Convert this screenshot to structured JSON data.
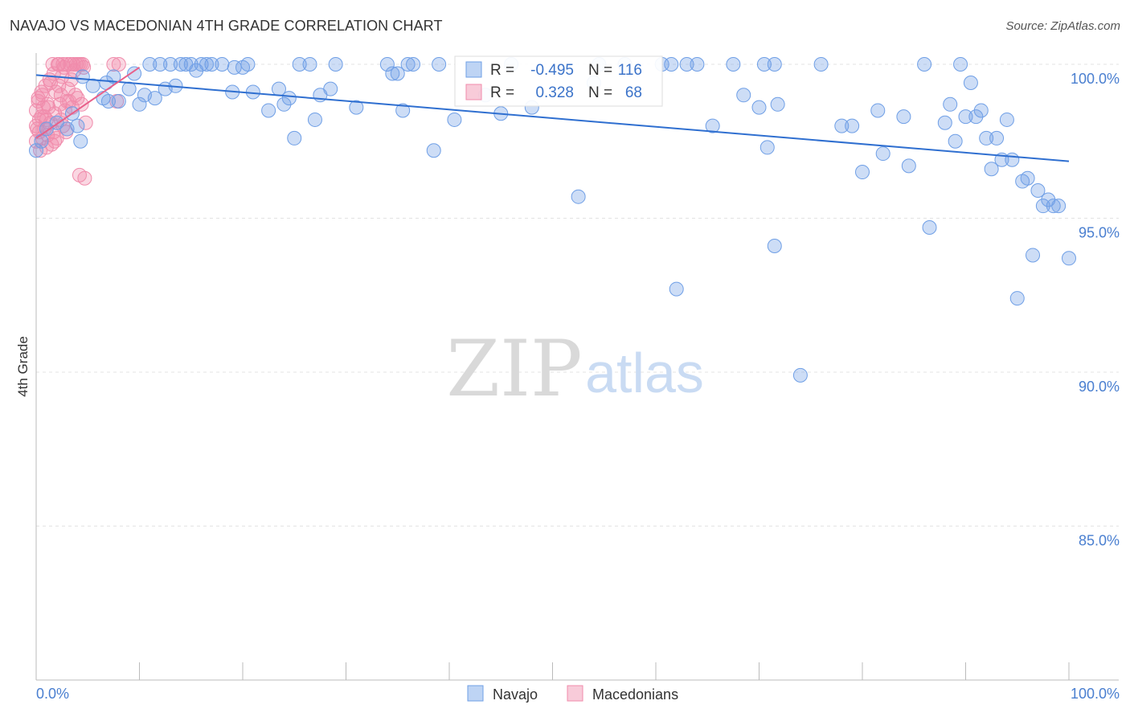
{
  "header": {
    "title": "NAVAJO VS MACEDONIAN 4TH GRADE CORRELATION CHART",
    "source": "Source: ZipAtlas.com"
  },
  "watermark": {
    "zip": "ZIP",
    "atlas": "atlas"
  },
  "chart_data": {
    "type": "scatter",
    "title": "NAVAJO VS MACEDONIAN 4TH GRADE CORRELATION CHART",
    "xlabel": "",
    "ylabel": "4th Grade",
    "xlim": [
      0,
      100
    ],
    "ylim": [
      80.5,
      100.8
    ],
    "x_tick_labels": [
      "0.0%",
      "100.0%"
    ],
    "y_ticks": [
      100,
      95,
      90,
      85
    ],
    "y_tick_labels": [
      "100.0%",
      "95.0%",
      "90.0%",
      "85.0%"
    ],
    "grid": true,
    "legend_position": "bottom-center",
    "stats_box": {
      "r_label": "R =",
      "n_label": "N =",
      "rows": [
        {
          "series": "Navajo",
          "r": "-0.495",
          "n": "116"
        },
        {
          "series": "Macedonians",
          "r": "0.328",
          "n": "68"
        }
      ]
    },
    "colors": {
      "Navajo": "#6f9fe6",
      "Macedonians": "#f08bab",
      "navajo_line": "#2f6fd0",
      "macedonians_line": "#e8608a",
      "axis_text": "#4a7fd0"
    },
    "series": [
      {
        "name": "Navajo",
        "trend": [
          [
            0,
            99.65
          ],
          [
            100,
            96.85
          ]
        ],
        "points": [
          [
            0,
            97.2
          ],
          [
            0.5,
            97.5
          ],
          [
            1,
            97.9
          ],
          [
            2,
            98.1
          ],
          [
            3,
            97.9
          ],
          [
            3.5,
            98.4
          ],
          [
            4,
            98.0
          ],
          [
            4.3,
            97.5
          ],
          [
            4.5,
            99.6
          ],
          [
            5.5,
            99.3
          ],
          [
            6.5,
            98.9
          ],
          [
            7,
            98.8
          ],
          [
            7.5,
            99.6
          ],
          [
            8,
            98.8
          ],
          [
            9,
            99.2
          ],
          [
            9.5,
            99.7
          ],
          [
            10,
            98.7
          ],
          [
            10.5,
            99.0
          ],
          [
            11,
            100
          ],
          [
            11.5,
            98.9
          ],
          [
            12,
            100
          ],
          [
            12.5,
            99.2
          ],
          [
            13,
            100
          ],
          [
            13.5,
            99.3
          ],
          [
            14,
            100
          ],
          [
            14.5,
            100
          ],
          [
            15,
            100
          ],
          [
            15.5,
            99.8
          ],
          [
            16,
            100
          ],
          [
            16.5,
            100
          ],
          [
            17,
            100
          ],
          [
            18,
            100
          ],
          [
            19,
            99.1
          ],
          [
            19.2,
            99.9
          ],
          [
            20,
            99.9
          ],
          [
            20.5,
            100
          ],
          [
            21,
            99.1
          ],
          [
            22.5,
            98.5
          ],
          [
            23.5,
            99.2
          ],
          [
            24,
            98.7
          ],
          [
            24.5,
            98.9
          ],
          [
            25,
            97.6
          ],
          [
            25.5,
            100
          ],
          [
            26.5,
            100
          ],
          [
            27,
            98.2
          ],
          [
            27.5,
            99.0
          ],
          [
            28.5,
            99.2
          ],
          [
            29,
            100
          ],
          [
            31,
            98.6
          ],
          [
            34,
            100
          ],
          [
            34.5,
            99.7
          ],
          [
            35,
            99.7
          ],
          [
            35.5,
            98.5
          ],
          [
            36,
            100
          ],
          [
            36.5,
            100
          ],
          [
            39,
            100
          ],
          [
            38.5,
            97.2
          ],
          [
            40.5,
            98.2
          ],
          [
            43.5,
            99.0
          ],
          [
            45,
            98.4
          ],
          [
            46,
            100
          ],
          [
            52.5,
            95.7
          ],
          [
            54.5,
            100
          ],
          [
            57,
            100
          ],
          [
            61.5,
            100
          ],
          [
            62,
            92.7
          ],
          [
            63,
            100
          ],
          [
            64,
            100
          ],
          [
            65.5,
            98.0
          ],
          [
            67.5,
            100
          ],
          [
            68.5,
            99.0
          ],
          [
            70,
            98.6
          ],
          [
            70.5,
            100
          ],
          [
            70.8,
            97.3
          ],
          [
            71.5,
            100
          ],
          [
            71.8,
            98.7
          ],
          [
            71.5,
            94.1
          ],
          [
            74,
            89.9
          ],
          [
            76,
            100
          ],
          [
            78,
            98.0
          ],
          [
            79,
            98.0
          ],
          [
            80,
            96.5
          ],
          [
            81.5,
            98.5
          ],
          [
            82,
            97.1
          ],
          [
            84,
            98.3
          ],
          [
            84.5,
            96.7
          ],
          [
            86,
            100
          ],
          [
            86.5,
            94.7
          ],
          [
            88,
            98.1
          ],
          [
            88.5,
            98.7
          ],
          [
            89,
            97.5
          ],
          [
            89.5,
            100
          ],
          [
            90,
            98.3
          ],
          [
            90.5,
            99.4
          ],
          [
            91,
            98.3
          ],
          [
            91.5,
            98.5
          ],
          [
            92,
            97.6
          ],
          [
            92.5,
            96.6
          ],
          [
            93,
            97.6
          ],
          [
            93.5,
            96.9
          ],
          [
            94,
            98.2
          ],
          [
            94.5,
            96.9
          ],
          [
            95,
            92.4
          ],
          [
            95.5,
            96.2
          ],
          [
            96,
            96.3
          ],
          [
            96.5,
            93.8
          ],
          [
            97,
            95.9
          ],
          [
            97.5,
            95.4
          ],
          [
            98,
            95.6
          ],
          [
            98.5,
            95.4
          ],
          [
            99,
            95.4
          ],
          [
            100,
            93.7
          ],
          [
            6.8,
            99.4
          ],
          [
            54,
            99.4
          ],
          [
            60.6,
            100
          ],
          [
            48,
            98.6
          ]
        ]
      },
      {
        "name": "Macedonians",
        "trend": [
          [
            0,
            97.6
          ],
          [
            10,
            99.9
          ]
        ],
        "points": [
          [
            0,
            98.5
          ],
          [
            0,
            98.0
          ],
          [
            0,
            97.5
          ],
          [
            0.2,
            98.8
          ],
          [
            0.3,
            97.8
          ],
          [
            0.4,
            97.2
          ],
          [
            0.5,
            98.3
          ],
          [
            0.6,
            99.0
          ],
          [
            0.7,
            98.6
          ],
          [
            0.8,
            97.9
          ],
          [
            0.9,
            99.3
          ],
          [
            1.0,
            98.2
          ],
          [
            1.1,
            97.7
          ],
          [
            1.2,
            98.6
          ],
          [
            1.3,
            99.5
          ],
          [
            1.4,
            98.1
          ],
          [
            1.5,
            97.4
          ],
          [
            1.6,
            100
          ],
          [
            1.7,
            99.7
          ],
          [
            1.8,
            98.4
          ],
          [
            1.9,
            99.1
          ],
          [
            2.0,
            97.6
          ],
          [
            2.1,
            100
          ],
          [
            2.2,
            99.3
          ],
          [
            2.3,
            98.7
          ],
          [
            2.4,
            98.2
          ],
          [
            2.5,
            99.6
          ],
          [
            2.6,
            100
          ],
          [
            2.7,
            99.9
          ],
          [
            2.8,
            98.5
          ],
          [
            2.9,
            97.8
          ],
          [
            3.0,
            100
          ],
          [
            3.1,
            99.2
          ],
          [
            3.2,
            98.8
          ],
          [
            3.3,
            100
          ],
          [
            3.4,
            99.5
          ],
          [
            3.5,
            98.6
          ],
          [
            3.6,
            100
          ],
          [
            3.7,
            99.8
          ],
          [
            3.8,
            99.0
          ],
          [
            3.9,
            100
          ],
          [
            4.0,
            98.9
          ],
          [
            4.1,
            100
          ],
          [
            4.2,
            96.4
          ],
          [
            4.3,
            100
          ],
          [
            4.4,
            98.7
          ],
          [
            4.5,
            100
          ],
          [
            4.6,
            99.9
          ],
          [
            4.7,
            96.3
          ],
          [
            4.8,
            98.1
          ],
          [
            1.0,
            97.3
          ],
          [
            0.5,
            99.1
          ],
          [
            0.2,
            98.9
          ],
          [
            1.8,
            97.5
          ],
          [
            2.6,
            98.0
          ],
          [
            3.0,
            98.8
          ],
          [
            0.8,
            98.3
          ],
          [
            1.4,
            99.4
          ],
          [
            2.2,
            100
          ],
          [
            0.1,
            97.9
          ],
          [
            1.1,
            98.7
          ],
          [
            0.6,
            97.6
          ],
          [
            7.5,
            100
          ],
          [
            8.0,
            100
          ],
          [
            7.8,
            98.8
          ],
          [
            0.3,
            98.2
          ],
          [
            1.7,
            97.8
          ],
          [
            2.4,
            99.0
          ]
        ]
      }
    ]
  },
  "legend": {
    "items": [
      "Navajo",
      "Macedonians"
    ]
  }
}
